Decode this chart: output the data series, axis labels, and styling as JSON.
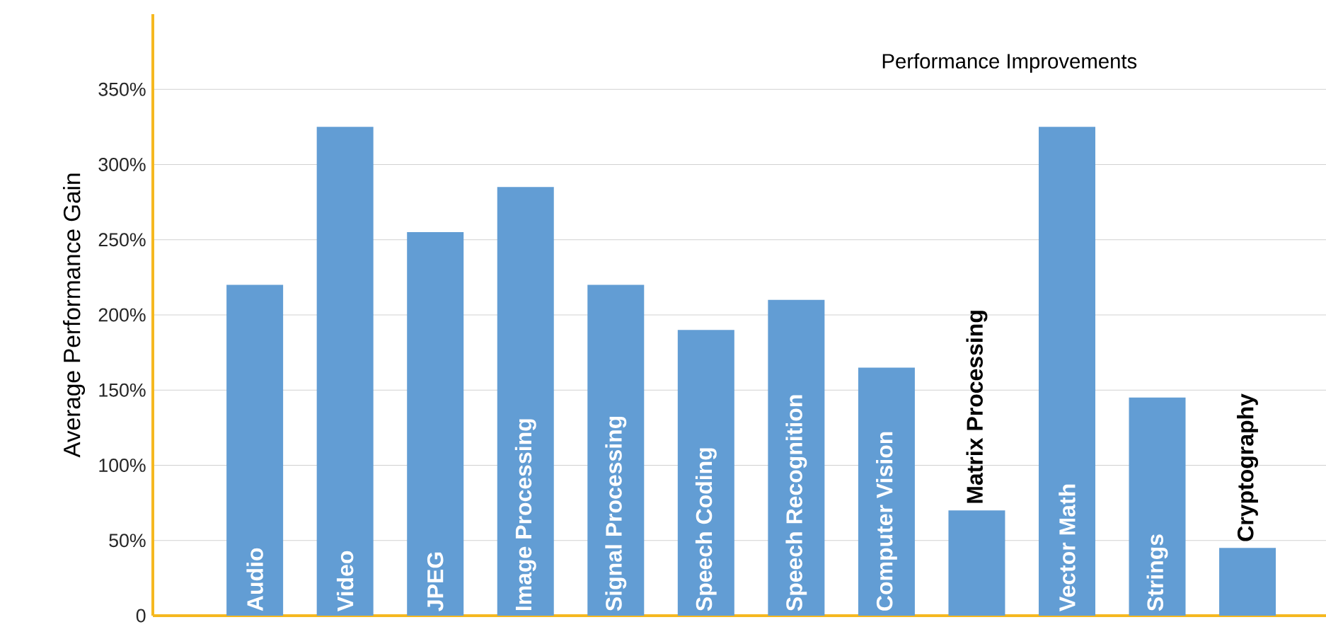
{
  "chart_data": {
    "type": "bar",
    "title": "Performance Improvements",
    "ylabel": "Average Performance Gain",
    "categories": [
      "Audio",
      "Video",
      "JPEG",
      "Image Processing",
      "Signal Processing",
      "Speech Coding",
      "Speech Recognition",
      "Computer Vision",
      "Matrix Processing",
      "Vector Math",
      "Strings",
      "Cryptography"
    ],
    "values": [
      220,
      325,
      255,
      285,
      220,
      190,
      210,
      165,
      70,
      325,
      145,
      45
    ],
    "color": "#629dd4",
    "ylim": [
      0,
      400
    ],
    "yticks": [
      {
        "value": 0,
        "label": "0"
      },
      {
        "value": 50,
        "label": "50%"
      },
      {
        "value": 100,
        "label": "100%"
      },
      {
        "value": 150,
        "label": "150%"
      },
      {
        "value": 200,
        "label": "200%"
      },
      {
        "value": 250,
        "label": "250%"
      },
      {
        "value": 300,
        "label": "300%"
      },
      {
        "value": 350,
        "label": "350%"
      }
    ],
    "grid": "y"
  }
}
